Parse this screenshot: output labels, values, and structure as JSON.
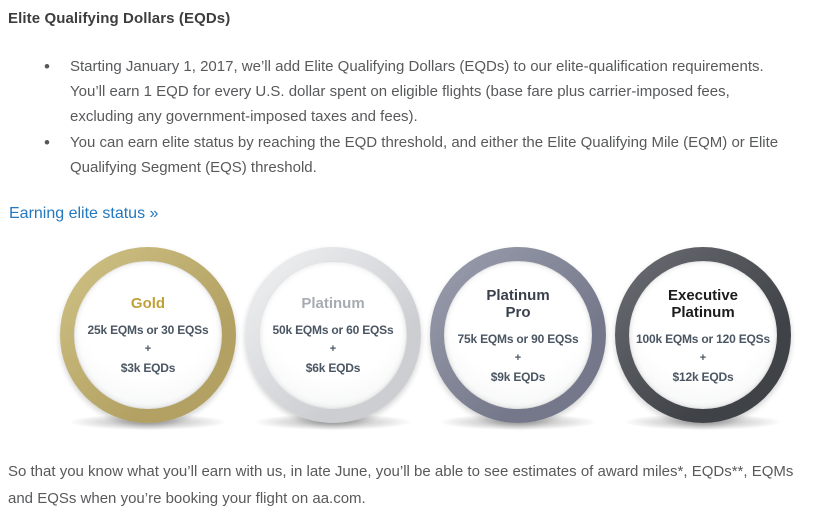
{
  "header": {
    "title": "Elite Qualifying Dollars (EQDs)"
  },
  "bullets": [
    "Starting January 1, 2017, we’ll add Elite Qualifying Dollars (EQDs) to our elite-qualification requirements. You’ll earn 1 EQD for every U.S. dollar spent on eligible flights (base fare plus carrier-imposed fees, excluding any government-imposed taxes and fees).",
    "You can earn elite status by reaching the EQD threshold, and either the Elite Qualifying Mile (EQM) or Elite Qualifying Segment (EQS) threshold."
  ],
  "link": {
    "label": "Earning elite status »"
  },
  "badges": [
    {
      "title_line1": "Gold",
      "title_line2": "",
      "requirement": "25k EQMs or 30 EQSs",
      "plus": "+",
      "eqd": "$3k EQDs",
      "ring_color": "#b2a162",
      "ring_color_light": "#d0c286",
      "title_color": "#c0a138"
    },
    {
      "title_line1": "Platinum",
      "title_line2": "",
      "requirement": "50k EQMs or 60 EQSs",
      "plus": "+",
      "eqd": "$6k EQDs",
      "ring_color": "#ccced2",
      "ring_color_light": "#f2f3f4",
      "title_color": "#a7abb3"
    },
    {
      "title_line1": "Platinum",
      "title_line2": "Pro",
      "requirement": "75k EQMs or 90 EQSs",
      "plus": "+",
      "eqd": "$9k EQDs",
      "ring_color": "#74788a",
      "ring_color_light": "#9b9fae",
      "title_color": "#3a414d"
    },
    {
      "title_line1": "Executive",
      "title_line2": "Platinum",
      "requirement": "100k EQMs or 120 EQSs",
      "plus": "+",
      "eqd": "$12k EQDs",
      "ring_color": "#3f4247",
      "ring_color_light": "#6c6f75",
      "title_color": "#1c1c1c"
    }
  ],
  "footer": {
    "text": "So that you know what you’ll earn with us, in late June, you’ll be able to see estimates of award miles*, EQDs**, EQMs and EQSs when you’re booking your flight on aa.com."
  },
  "colors": {
    "link": "#2478be",
    "heading": "#3d3d3d",
    "body": "#58595b",
    "badgetext": "#4b5663"
  }
}
